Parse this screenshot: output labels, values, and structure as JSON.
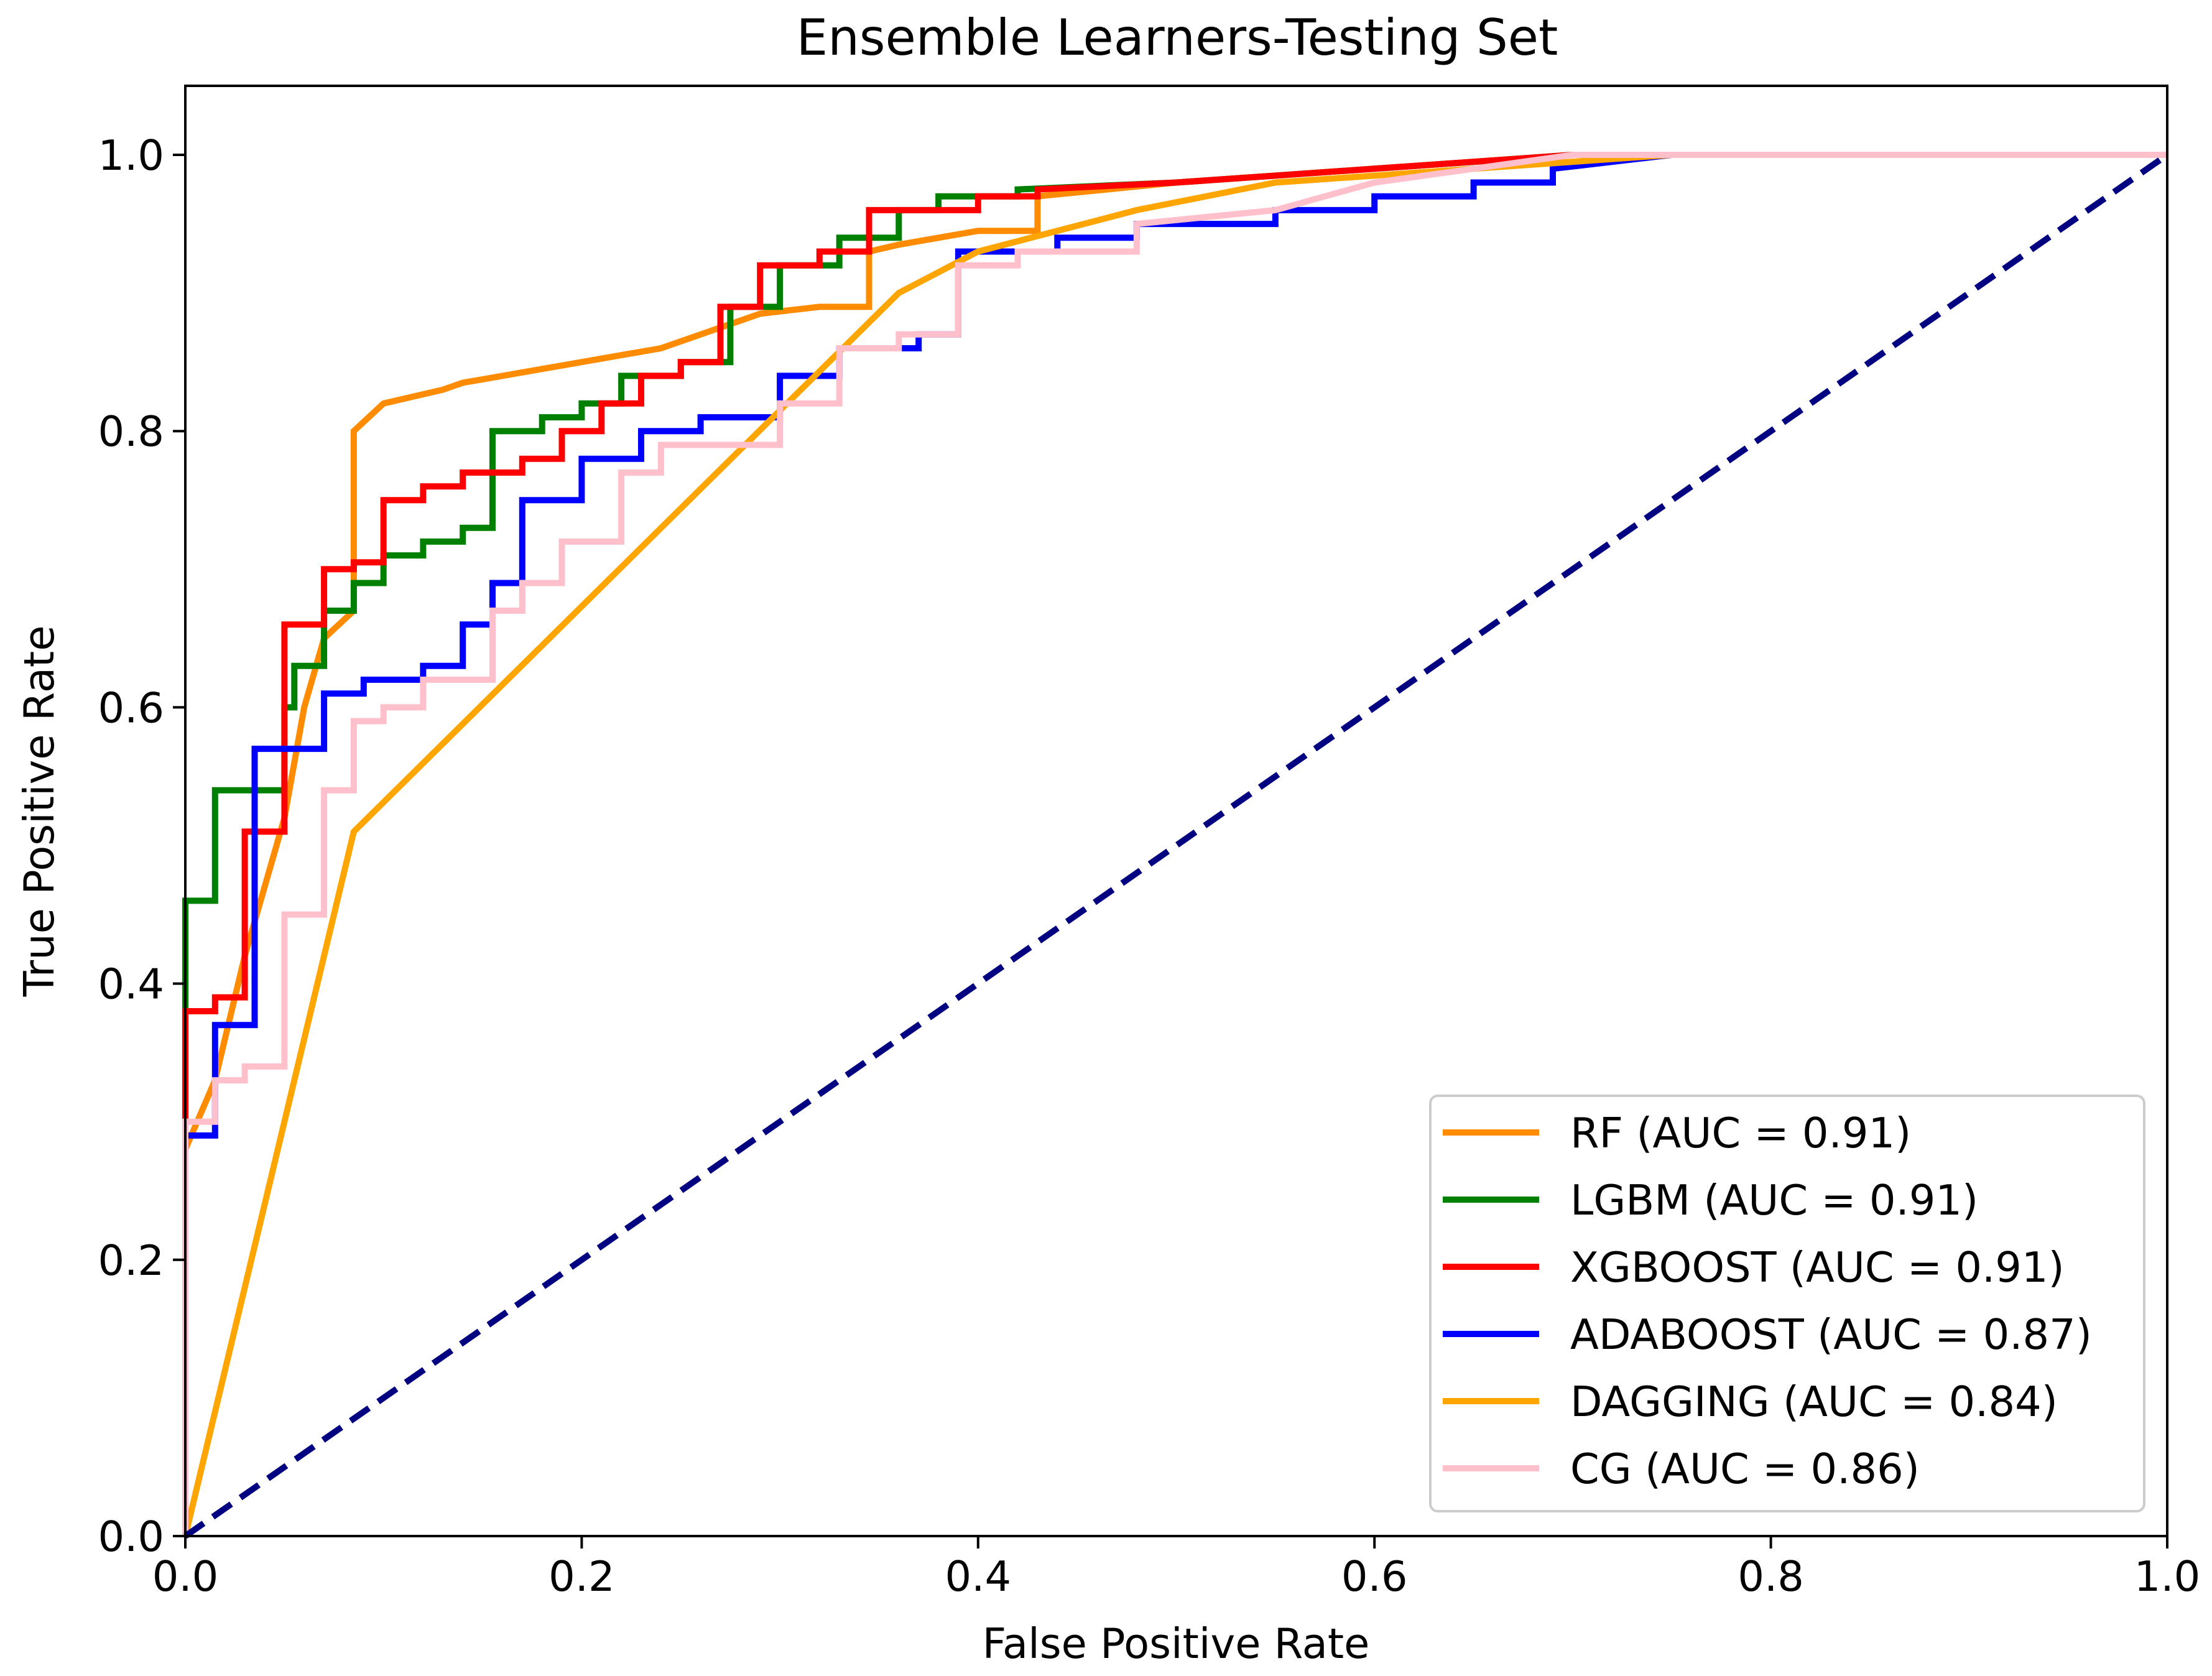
{
  "chart_data": {
    "type": "line",
    "title": "Ensemble Learners-Testing Set",
    "xlabel": "False Positive Rate",
    "ylabel": "True Positive Rate",
    "xlim": [
      0,
      1
    ],
    "ylim": [
      0,
      1.05
    ],
    "xticks": [
      "0.0",
      "0.2",
      "0.4",
      "0.6",
      "0.8",
      "1.0"
    ],
    "yticks": [
      "0.0",
      "0.2",
      "0.4",
      "0.6",
      "0.8",
      "1.0"
    ],
    "legend_position": "lower-right",
    "series": [
      {
        "name": "RF",
        "label": "RF (AUC = 0.91)",
        "color": "#ff8c00",
        "x": [
          0,
          0,
          0.015,
          0.03,
          0.05,
          0.06,
          0.07,
          0.085,
          0.085,
          0.1,
          0.13,
          0.14,
          0.2,
          0.22,
          0.24,
          0.25,
          0.26,
          0.28,
          0.29,
          0.32,
          0.345,
          0.345,
          0.36,
          0.38,
          0.4,
          0.43,
          0.43,
          0.5,
          0.55,
          0.6,
          0.65,
          0.7,
          0.8,
          0.9,
          1.0
        ],
        "y": [
          0,
          0.28,
          0.33,
          0.42,
          0.52,
          0.6,
          0.65,
          0.67,
          0.8,
          0.82,
          0.83,
          0.835,
          0.85,
          0.855,
          0.86,
          0.865,
          0.87,
          0.88,
          0.885,
          0.89,
          0.89,
          0.93,
          0.935,
          0.94,
          0.945,
          0.945,
          0.97,
          0.98,
          0.985,
          0.99,
          0.995,
          1.0,
          1.0,
          1.0,
          1.0
        ]
      },
      {
        "name": "LGBM",
        "label": "LGBM (AUC = 0.91)",
        "color": "#008000",
        "x": [
          0,
          0,
          0.015,
          0.015,
          0.03,
          0.03,
          0.05,
          0.05,
          0.055,
          0.055,
          0.07,
          0.07,
          0.085,
          0.085,
          0.1,
          0.1,
          0.12,
          0.12,
          0.14,
          0.14,
          0.155,
          0.155,
          0.18,
          0.18,
          0.2,
          0.2,
          0.22,
          0.22,
          0.25,
          0.25,
          0.275,
          0.275,
          0.3,
          0.3,
          0.33,
          0.33,
          0.36,
          0.36,
          0.38,
          0.38,
          0.42,
          0.42,
          0.5,
          0.6,
          0.65,
          0.7,
          0.8,
          1.0
        ],
        "y": [
          0,
          0.46,
          0.46,
          0.54,
          0.54,
          0.54,
          0.54,
          0.6,
          0.6,
          0.63,
          0.63,
          0.67,
          0.67,
          0.69,
          0.69,
          0.71,
          0.71,
          0.72,
          0.72,
          0.73,
          0.73,
          0.8,
          0.8,
          0.81,
          0.81,
          0.82,
          0.82,
          0.84,
          0.84,
          0.85,
          0.85,
          0.89,
          0.89,
          0.92,
          0.92,
          0.94,
          0.94,
          0.96,
          0.96,
          0.97,
          0.97,
          0.975,
          0.98,
          0.99,
          0.995,
          1.0,
          1.0,
          1.0
        ]
      },
      {
        "name": "XGBOOST",
        "label": "XGBOOST (AUC = 0.91)",
        "color": "#ff0000",
        "x": [
          0,
          0,
          0.015,
          0.015,
          0.03,
          0.03,
          0.05,
          0.05,
          0.07,
          0.07,
          0.085,
          0.085,
          0.1,
          0.1,
          0.12,
          0.12,
          0.14,
          0.14,
          0.17,
          0.17,
          0.19,
          0.19,
          0.21,
          0.21,
          0.23,
          0.23,
          0.25,
          0.25,
          0.27,
          0.27,
          0.29,
          0.29,
          0.32,
          0.32,
          0.345,
          0.345,
          0.4,
          0.4,
          0.43,
          0.43,
          0.5,
          0.6,
          0.7,
          0.8,
          1.0
        ],
        "y": [
          0,
          0.38,
          0.38,
          0.39,
          0.39,
          0.51,
          0.51,
          0.66,
          0.66,
          0.7,
          0.7,
          0.705,
          0.705,
          0.75,
          0.75,
          0.76,
          0.76,
          0.77,
          0.77,
          0.78,
          0.78,
          0.8,
          0.8,
          0.82,
          0.82,
          0.84,
          0.84,
          0.85,
          0.85,
          0.89,
          0.89,
          0.92,
          0.92,
          0.93,
          0.93,
          0.96,
          0.96,
          0.97,
          0.97,
          0.975,
          0.98,
          0.99,
          1.0,
          1.0,
          1.0
        ]
      },
      {
        "name": "ADABOOST",
        "label": "ADABOOST (AUC = 0.87)",
        "color": "#0000ff",
        "x": [
          0,
          0,
          0.015,
          0.015,
          0.035,
          0.035,
          0.07,
          0.07,
          0.09,
          0.09,
          0.12,
          0.12,
          0.14,
          0.14,
          0.155,
          0.155,
          0.17,
          0.17,
          0.2,
          0.2,
          0.23,
          0.23,
          0.26,
          0.26,
          0.3,
          0.3,
          0.33,
          0.33,
          0.37,
          0.37,
          0.39,
          0.39,
          0.44,
          0.44,
          0.48,
          0.48,
          0.55,
          0.55,
          0.6,
          0.6,
          0.65,
          0.65,
          0.69,
          0.69,
          0.75,
          1.0
        ],
        "y": [
          0,
          0.29,
          0.29,
          0.37,
          0.37,
          0.57,
          0.57,
          0.61,
          0.61,
          0.62,
          0.62,
          0.63,
          0.63,
          0.66,
          0.66,
          0.69,
          0.69,
          0.75,
          0.75,
          0.78,
          0.78,
          0.8,
          0.8,
          0.81,
          0.81,
          0.84,
          0.84,
          0.86,
          0.86,
          0.87,
          0.87,
          0.93,
          0.93,
          0.94,
          0.94,
          0.95,
          0.95,
          0.96,
          0.96,
          0.97,
          0.97,
          0.98,
          0.98,
          0.99,
          1.0,
          1.0
        ]
      },
      {
        "name": "DAGGING",
        "label": "DAGGING (AUC = 0.84)",
        "color": "#ffa500",
        "x": [
          0,
          0.085,
          0.36,
          0.4,
          0.48,
          0.55,
          0.65,
          0.75,
          0.85,
          1.0
        ],
        "y": [
          0,
          0.51,
          0.9,
          0.93,
          0.96,
          0.98,
          0.99,
          1.0,
          1.0,
          1.0
        ]
      },
      {
        "name": "CG",
        "label": "CG (AUC = 0.86)",
        "color": "#ffc0cb",
        "x": [
          0,
          0,
          0.015,
          0.015,
          0.03,
          0.03,
          0.05,
          0.05,
          0.07,
          0.07,
          0.085,
          0.085,
          0.1,
          0.1,
          0.12,
          0.12,
          0.155,
          0.155,
          0.17,
          0.17,
          0.19,
          0.19,
          0.22,
          0.22,
          0.24,
          0.24,
          0.3,
          0.3,
          0.33,
          0.33,
          0.36,
          0.36,
          0.39,
          0.39,
          0.42,
          0.42,
          0.48,
          0.48,
          0.55,
          0.6,
          0.65,
          0.7,
          0.8,
          1.0
        ],
        "y": [
          0,
          0.3,
          0.3,
          0.33,
          0.33,
          0.34,
          0.34,
          0.45,
          0.45,
          0.54,
          0.54,
          0.59,
          0.59,
          0.6,
          0.6,
          0.62,
          0.62,
          0.67,
          0.67,
          0.69,
          0.69,
          0.72,
          0.72,
          0.77,
          0.77,
          0.79,
          0.79,
          0.82,
          0.82,
          0.86,
          0.86,
          0.87,
          0.87,
          0.92,
          0.92,
          0.93,
          0.93,
          0.95,
          0.96,
          0.98,
          0.99,
          1.0,
          1.0,
          1.0
        ]
      }
    ],
    "reference_line": {
      "name": "chance",
      "color": "#000080",
      "style": "dashed",
      "x": [
        0,
        1
      ],
      "y": [
        0,
        1
      ]
    }
  }
}
